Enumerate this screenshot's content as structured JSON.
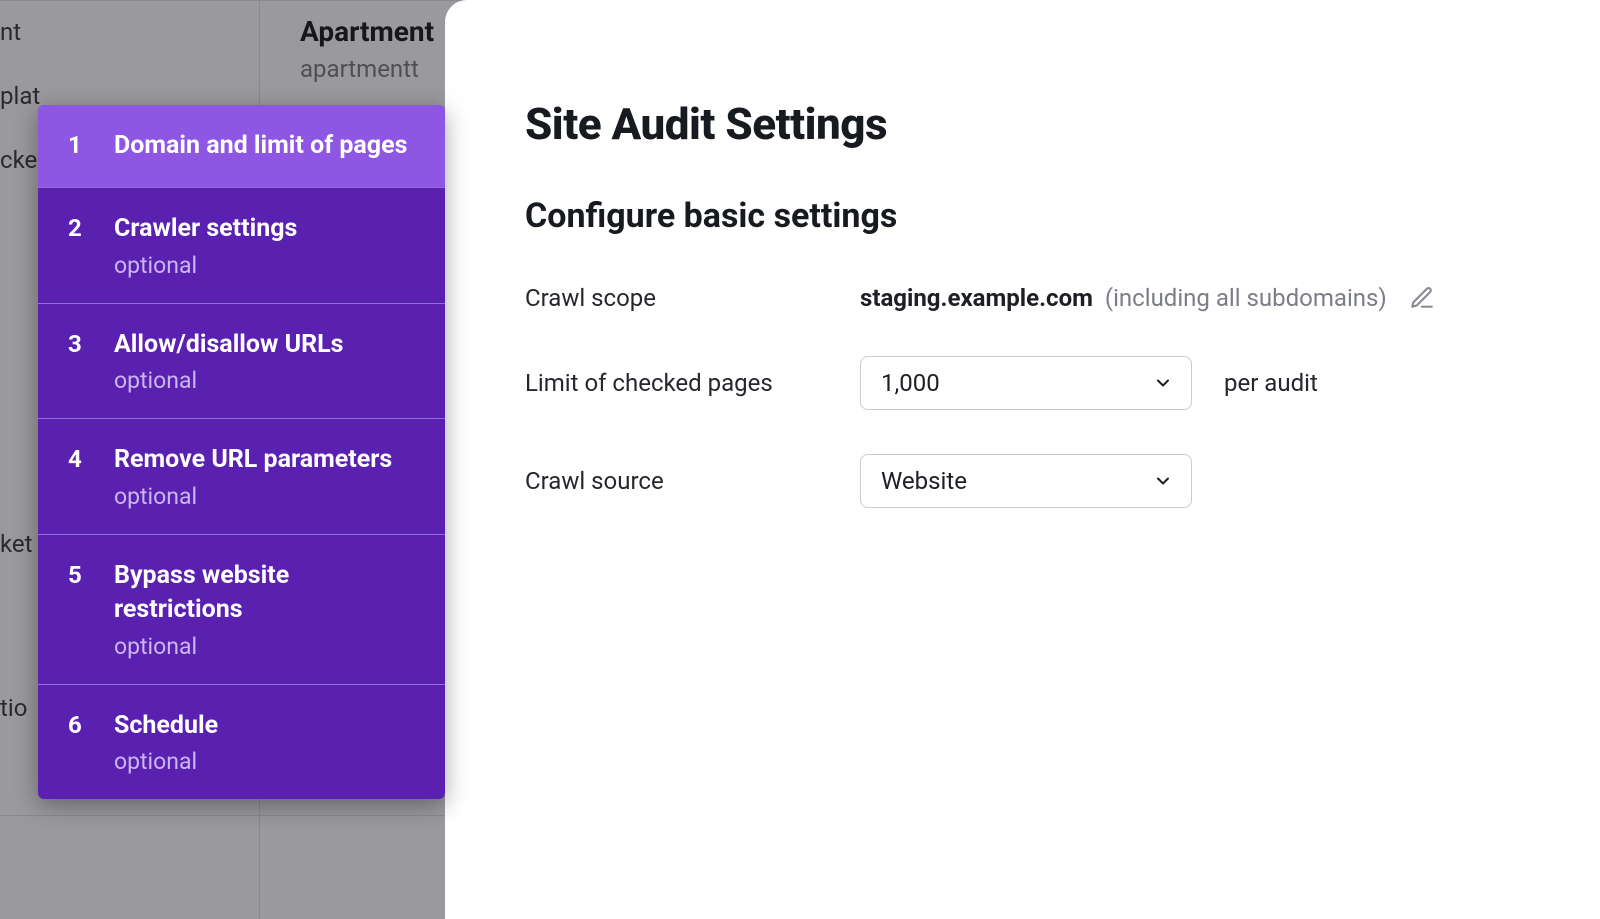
{
  "background": {
    "project_title": "Apartment",
    "project_domain": "apartmentt",
    "left_items": [
      "nt",
      "plat",
      "cke",
      "ket",
      "tio"
    ]
  },
  "modal": {
    "heading": "Site Audit Settings",
    "subheading": "Configure basic settings",
    "rows": {
      "crawl_scope": {
        "label": "Crawl scope",
        "domain": "staging.example.com",
        "note": "(including all subdomains)"
      },
      "limit": {
        "label": "Limit of checked pages",
        "select_value": "1,000",
        "suffix": "per audit"
      },
      "source": {
        "label": "Crawl source",
        "select_value": "Website"
      }
    }
  },
  "steps": [
    {
      "num": "1",
      "title": "Domain and limit of pages",
      "optional": false,
      "active": true
    },
    {
      "num": "2",
      "title": "Crawler settings",
      "optional": true,
      "active": false
    },
    {
      "num": "3",
      "title": "Allow/disallow URLs",
      "optional": true,
      "active": false
    },
    {
      "num": "4",
      "title": "Remove URL parameters",
      "optional": true,
      "active": false
    },
    {
      "num": "5",
      "title": "Bypass website restrictions",
      "optional": true,
      "active": false
    },
    {
      "num": "6",
      "title": "Schedule",
      "optional": true,
      "active": false
    }
  ],
  "labels": {
    "optional": "optional"
  },
  "colors": {
    "step_bg": "#5a20b0",
    "step_active_bg": "#8d56e3",
    "step_optional_text": "#cbb6f0",
    "overlay": "rgba(30,30,40,0.45)",
    "text_primary": "#171a1f",
    "text_muted": "#7b7e85",
    "select_border": "#c9ccd1"
  }
}
